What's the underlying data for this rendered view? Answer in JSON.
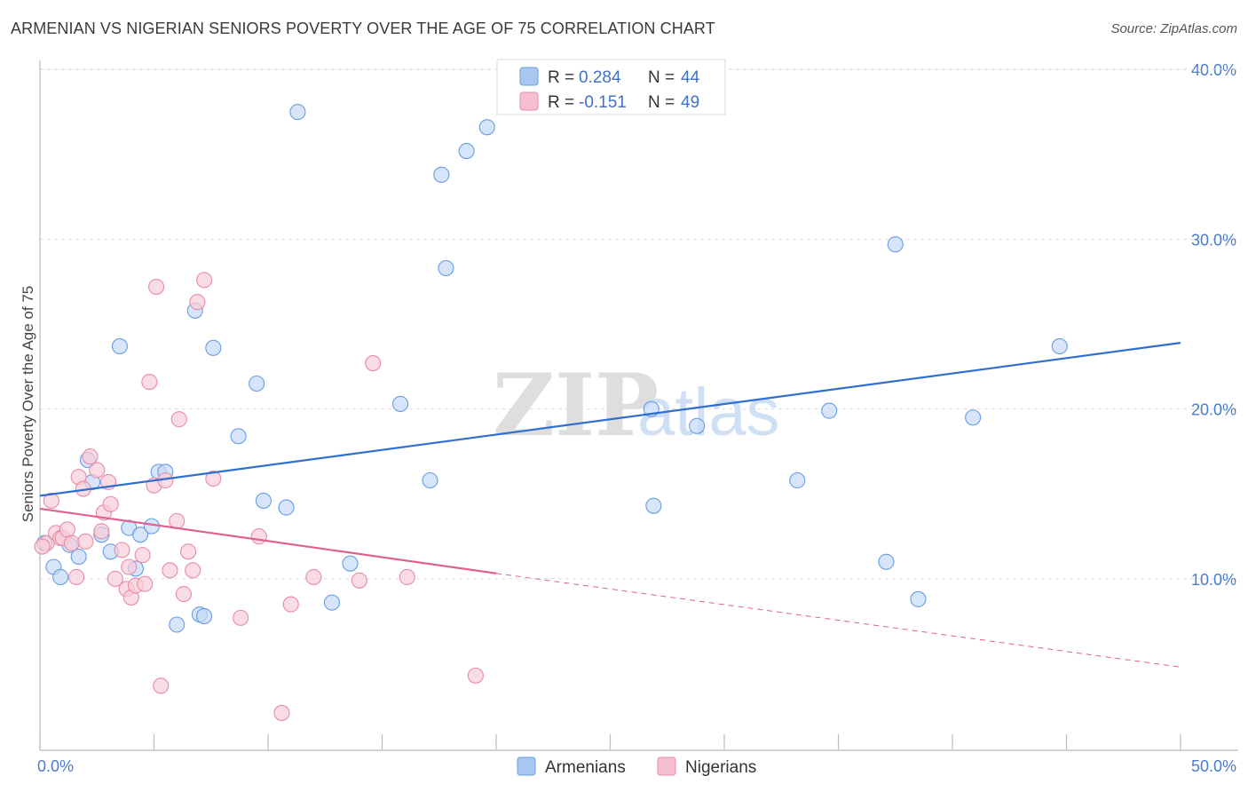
{
  "title": "ARMENIAN VS NIGERIAN SENIORS POVERTY OVER THE AGE OF 75 CORRELATION CHART",
  "source": "Source: ZipAtlas.com",
  "watermark": {
    "zip": "ZIP",
    "atlas": "atlas"
  },
  "legend": {
    "r_label": "R =",
    "n_label": "N =",
    "items": [
      {
        "name": "Armenians",
        "r": "0.284",
        "n": "44",
        "color": "#a9c8f0",
        "stroke": "#6a9ce0"
      },
      {
        "name": "Nigerians",
        "r": "-0.151",
        "n": "49",
        "color": "#f6bfd0",
        "stroke": "#e88aa8"
      }
    ]
  },
  "chart_data": {
    "type": "scatter",
    "xlabel": "",
    "ylabel": "Seniors Poverty Over the Age of 75",
    "xlim": [
      0,
      50
    ],
    "ylim": [
      0,
      40
    ],
    "x_ticks": [
      "0.0%",
      "50.0%"
    ],
    "y_ticks": [
      {
        "value": 10,
        "label": "10.0%"
      },
      {
        "value": 20,
        "label": "20.0%"
      },
      {
        "value": 30,
        "label": "30.0%"
      },
      {
        "value": 40,
        "label": "40.0%"
      }
    ],
    "series": [
      {
        "name": "Armenians",
        "color": "#6a9ce0",
        "fill": "#c5daf6",
        "trend": {
          "x": [
            0,
            50
          ],
          "y": [
            14.99,
            24.0
          ],
          "color": "#2f6fd0"
        },
        "points": [
          [
            0.2,
            12.2
          ],
          [
            0.6,
            10.8
          ],
          [
            0.9,
            10.2
          ],
          [
            1.3,
            12.1
          ],
          [
            1.7,
            11.4
          ],
          [
            2.1,
            17.1
          ],
          [
            2.3,
            15.8
          ],
          [
            2.7,
            12.7
          ],
          [
            3.1,
            11.7
          ],
          [
            3.5,
            23.8
          ],
          [
            3.9,
            13.1
          ],
          [
            4.2,
            10.7
          ],
          [
            4.4,
            12.7
          ],
          [
            4.9,
            13.2
          ],
          [
            5.2,
            16.4
          ],
          [
            5.5,
            16.4
          ],
          [
            6.0,
            7.4
          ],
          [
            6.8,
            25.9
          ],
          [
            7.0,
            8.0
          ],
          [
            7.2,
            7.9
          ],
          [
            7.6,
            23.7
          ],
          [
            8.7,
            18.5
          ],
          [
            9.5,
            21.6
          ],
          [
            9.8,
            14.7
          ],
          [
            10.8,
            14.3
          ],
          [
            11.3,
            37.6
          ],
          [
            12.8,
            8.7
          ],
          [
            13.6,
            11.0
          ],
          [
            15.8,
            20.4
          ],
          [
            17.1,
            15.9
          ],
          [
            17.6,
            33.9
          ],
          [
            17.8,
            28.4
          ],
          [
            18.7,
            35.3
          ],
          [
            19.6,
            36.7
          ],
          [
            26.8,
            20.1
          ],
          [
            26.9,
            14.4
          ],
          [
            28.8,
            19.1
          ],
          [
            33.2,
            15.9
          ],
          [
            34.6,
            20.0
          ],
          [
            37.1,
            11.1
          ],
          [
            37.5,
            29.8
          ],
          [
            38.5,
            8.9
          ],
          [
            40.9,
            19.6
          ],
          [
            44.7,
            23.8
          ]
        ]
      },
      {
        "name": "Nigerians",
        "color": "#e88aa8",
        "fill": "#f8cdd9",
        "trend": {
          "x": [
            0,
            20
          ],
          "y": [
            14.23,
            10.42
          ],
          "dash_to": [
            50,
            4.9
          ],
          "color": "#e06090"
        },
        "points": [
          [
            0.3,
            12.2
          ],
          [
            0.5,
            14.7
          ],
          [
            0.7,
            12.8
          ],
          [
            0.9,
            12.5
          ],
          [
            1.0,
            12.5
          ],
          [
            1.2,
            13.0
          ],
          [
            1.4,
            12.2
          ],
          [
            1.6,
            10.2
          ],
          [
            1.7,
            16.1
          ],
          [
            1.9,
            15.4
          ],
          [
            2.0,
            12.3
          ],
          [
            2.2,
            17.3
          ],
          [
            2.5,
            16.5
          ],
          [
            2.7,
            12.9
          ],
          [
            2.8,
            14.0
          ],
          [
            3.0,
            15.8
          ],
          [
            3.1,
            14.5
          ],
          [
            3.3,
            10.1
          ],
          [
            3.6,
            11.8
          ],
          [
            3.8,
            9.5
          ],
          [
            3.9,
            10.8
          ],
          [
            4.0,
            9.0
          ],
          [
            4.2,
            9.7
          ],
          [
            4.5,
            11.5
          ],
          [
            4.6,
            9.8
          ],
          [
            4.8,
            21.7
          ],
          [
            5.0,
            15.6
          ],
          [
            5.1,
            27.3
          ],
          [
            5.3,
            3.8
          ],
          [
            5.5,
            15.9
          ],
          [
            5.7,
            10.6
          ],
          [
            6.0,
            13.5
          ],
          [
            6.1,
            19.5
          ],
          [
            6.3,
            9.2
          ],
          [
            6.5,
            11.7
          ],
          [
            6.7,
            10.6
          ],
          [
            6.9,
            26.4
          ],
          [
            7.2,
            27.7
          ],
          [
            7.6,
            16.0
          ],
          [
            8.8,
            7.8
          ],
          [
            9.6,
            12.6
          ],
          [
            10.6,
            2.2
          ],
          [
            11.0,
            8.6
          ],
          [
            12.0,
            10.2
          ],
          [
            14.0,
            10.0
          ],
          [
            14.6,
            22.8
          ],
          [
            16.1,
            10.2
          ],
          [
            19.1,
            4.4
          ],
          [
            0.1,
            12.0
          ]
        ]
      }
    ],
    "grid": true,
    "legend_position": "top-center"
  },
  "bottom_legend": [
    "Armenians",
    "Nigerians"
  ]
}
